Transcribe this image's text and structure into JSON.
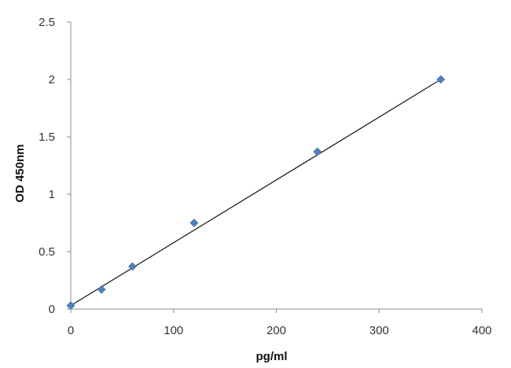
{
  "chart_data": {
    "type": "scatter",
    "xlabel": "pg/ml",
    "ylabel": "OD 450nm",
    "xlim": [
      0,
      400
    ],
    "ylim": [
      0,
      2.5
    ],
    "x_ticks": [
      0,
      100,
      200,
      300,
      400
    ],
    "y_ticks": [
      0,
      0.5,
      1,
      1.5,
      2,
      2.5
    ],
    "x_tick_labels": [
      "0",
      "100",
      "200",
      "300",
      "400"
    ],
    "y_tick_labels": [
      "0",
      "0.5",
      "1",
      "1.5",
      "2",
      "2.5"
    ],
    "grid": false,
    "legend": "none",
    "series": [
      {
        "marker": "diamond",
        "color": "#4f81bd",
        "points": [
          {
            "x": 0,
            "y": 0.03
          },
          {
            "x": 30,
            "y": 0.17
          },
          {
            "x": 60,
            "y": 0.37
          },
          {
            "x": 120,
            "y": 0.75
          },
          {
            "x": 240,
            "y": 1.37
          },
          {
            "x": 360,
            "y": 2.0
          }
        ]
      }
    ],
    "trendline": {
      "type": "linear",
      "color": "#222222",
      "from": {
        "x": 0,
        "y": 0.03
      },
      "to": {
        "x": 360,
        "y": 2.0
      }
    }
  }
}
